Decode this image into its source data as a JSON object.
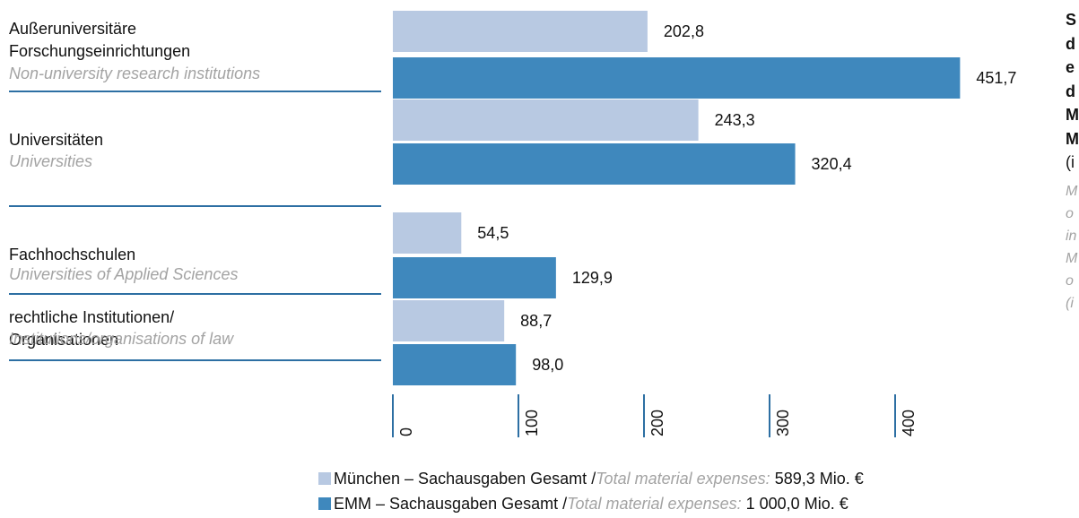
{
  "chart_data": {
    "type": "hbar",
    "categories": [
      "Außeruniversitäre\nForschungseinrichtungen",
      "Universitäten",
      "Fachhochschulen",
      "rechtliche Institutionen/\nOrganisationen"
    ],
    "category_translations": [
      "Non-university research institutions",
      "Universities",
      "Universities of Applied Sciences",
      "Institutions/organisations of law"
    ],
    "series": [
      {
        "name": "München – Sachausgaben Gesamt",
        "color": "#b8c9e2",
        "values": [
          202.8,
          243.3,
          54.5,
          88.7
        ],
        "value_labels": [
          "202,8",
          "243,3",
          "54,5",
          "88,7"
        ],
        "legend_translation": "Total material expenses:",
        "total_label": "589,3 Mio. €"
      },
      {
        "name": "EMM – Sachausgaben Gesamt",
        "color": "#3f88bd",
        "values": [
          451.7,
          320.4,
          129.9,
          98.0
        ],
        "value_labels": [
          "451,7",
          "320,4",
          "129,9",
          "98,0"
        ],
        "legend_translation": "Total material expenses:",
        "total_label": "1 000,0 Mio. €"
      }
    ],
    "legend_separator": "/",
    "xlim": [
      0,
      500
    ],
    "xticks": [
      0,
      100,
      200,
      300,
      400
    ],
    "side_title_lines": [
      "S",
      "d",
      "e",
      "d",
      "M",
      "M"
    ],
    "side_title_unit": "(i",
    "side_subtitle_lines": [
      "M",
      "o",
      "in",
      "M",
      "o",
      "(i"
    ]
  }
}
